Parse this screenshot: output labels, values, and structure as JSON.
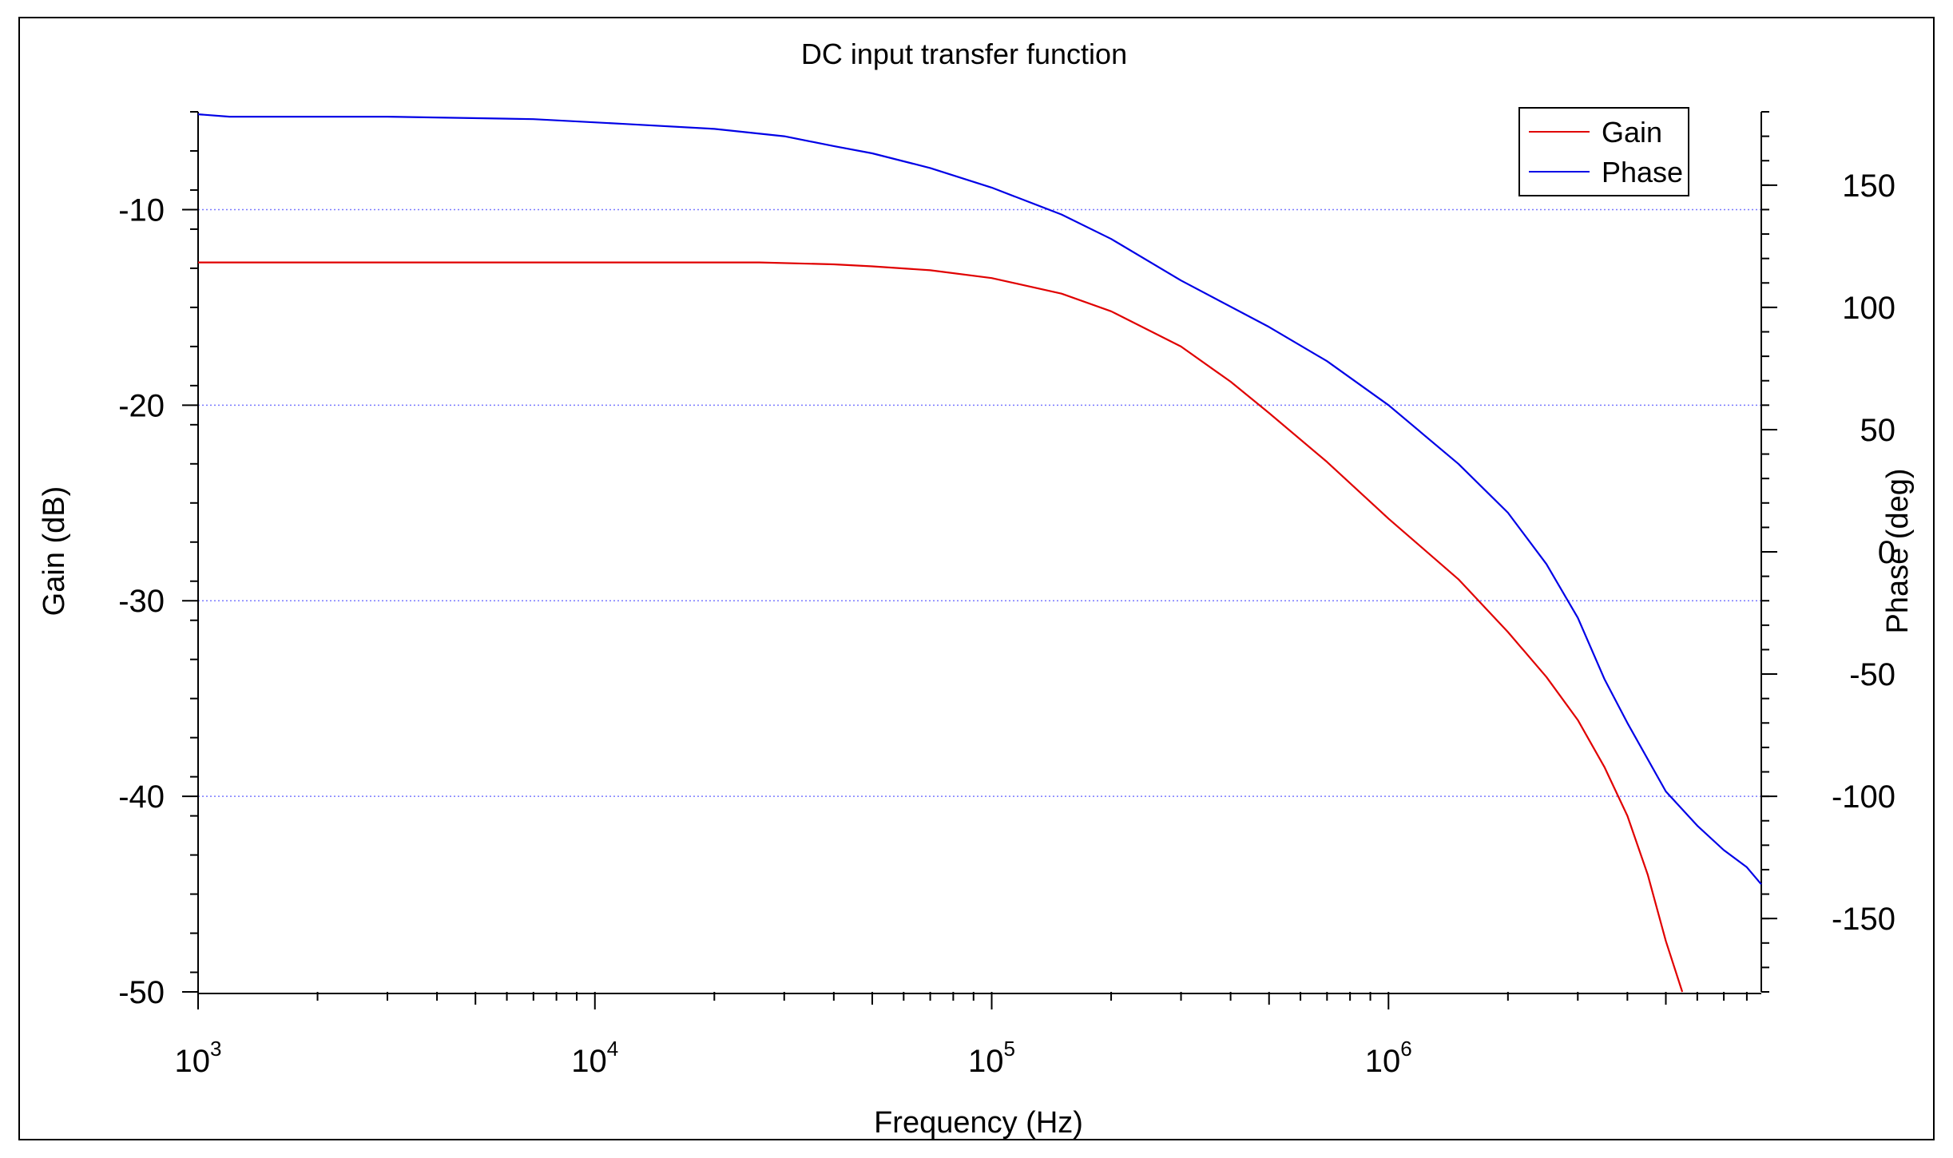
{
  "chart_data": {
    "type": "line",
    "title": "DC input transfer function",
    "xlabel": "Frequency (Hz)",
    "ylabel_left": "Gain (dB)",
    "ylabel_right": "Phase (deg)",
    "x_scale": "log",
    "xlim": [
      1000,
      8700000
    ],
    "ylim_left": [
      -50,
      -5
    ],
    "ylim_right": [
      -180,
      180
    ],
    "x_ticks": [
      {
        "base": "10",
        "exp": "3",
        "value": 1000
      },
      {
        "base": "10",
        "exp": "4",
        "value": 10000
      },
      {
        "base": "10",
        "exp": "5",
        "value": 100000
      },
      {
        "base": "10",
        "exp": "6",
        "value": 1000000
      }
    ],
    "left_ticks": [
      "-10",
      "-20",
      "-30",
      "-40",
      "-50"
    ],
    "right_ticks": [
      "150",
      "100",
      "50",
      "0",
      "-50",
      "-100",
      "-150"
    ],
    "grid": {
      "horizontal": true,
      "style": "dotted",
      "color": "#7a7aff"
    },
    "legend": {
      "position": "top-right"
    },
    "series": [
      {
        "name": "Gain",
        "color": "#e00000",
        "axis": "left",
        "x": [
          1000,
          5000,
          10000,
          20000,
          26000,
          40000,
          50000,
          70000,
          100000,
          150000,
          200000,
          300000,
          400000,
          500000,
          700000,
          1000000,
          1500000,
          2000000,
          2500000,
          3000000,
          3500000,
          4000000,
          4500000,
          5000000,
          5500000
        ],
        "y": [
          -12.7,
          -12.7,
          -12.7,
          -12.7,
          -12.7,
          -12.8,
          -12.9,
          -13.1,
          -13.5,
          -14.3,
          -15.2,
          -17.0,
          -18.8,
          -20.4,
          -22.9,
          -25.8,
          -28.9,
          -31.6,
          -33.9,
          -36.1,
          -38.5,
          -41.0,
          -44.0,
          -47.4,
          -50.0
        ]
      },
      {
        "name": "Phase",
        "color": "#0000e6",
        "axis": "right",
        "x": [
          1000,
          1200,
          3000,
          7000,
          12000,
          20000,
          30000,
          40000,
          50000,
          70000,
          100000,
          150000,
          200000,
          300000,
          500000,
          700000,
          1000000,
          1500000,
          2000000,
          2500000,
          3000000,
          3500000,
          4000000,
          5000000,
          6000000,
          7000000,
          8000000,
          8700000
        ],
        "y": [
          179,
          178,
          178,
          177,
          175,
          173,
          170,
          166,
          163,
          157,
          149,
          138,
          128,
          111,
          92,
          78,
          60,
          36,
          16,
          -5,
          -27,
          -52,
          -70,
          -98,
          -112,
          -122,
          -129,
          -136
        ]
      }
    ]
  }
}
